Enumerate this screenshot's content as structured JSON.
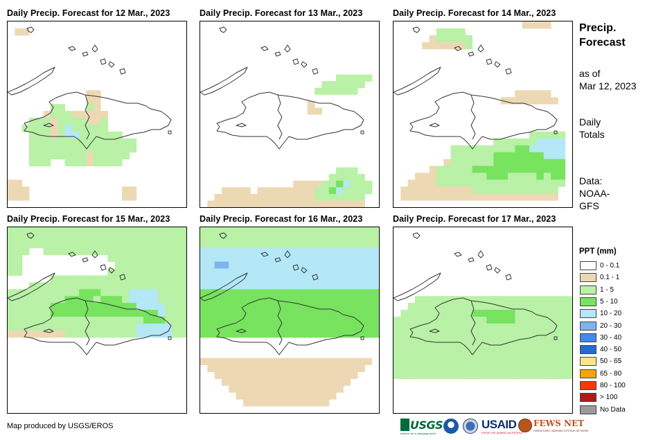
{
  "map_data": {
    "region": "Hispaniola",
    "panels": [
      {
        "title": "Daily Precip. Forecast for 12 Mar., 2023",
        "date": "12 Mar., 2023",
        "grid": [
          "0000000000000000000000000",
          "0110000000000000000000000",
          "0000000000000000000000000",
          "0000000000000000000000000",
          "0000000000000000000000000",
          "0000000000000000000000000",
          "0000000000000000000000000",
          "0000000000000000000000000",
          "0000000000000000000000000",
          "0000000000000000000000000",
          "0000000000011000000000000",
          "0000000000011000000000000",
          "0000002200021000000000000",
          "0000012221111100000000000",
          "0002221222211200000000000",
          "0022221242222200000000000",
          "0002221244222222000000000",
          "0002222222222222220000000",
          "0002222222222222220000000",
          "0002222222212222200000000",
          "0002220022212222000000000",
          "0000000000000000000000000",
          "0000000000000000000000000",
          "1100000000000000000000000",
          "1110000000000000110000000",
          "1110000000000000110000000",
          "0000000000000000000000000"
        ]
      },
      {
        "title": "Daily Precip. Forecast for 13 Mar., 2023",
        "date": "13 Mar., 2023",
        "grid": [
          "0000000000000000000000000",
          "0000000000000000000000000",
          "0000000000000000000000000",
          "0000000000000000000000000",
          "0000000000000000000000000",
          "0000000000000000000000000",
          "0000000000000000000000000",
          "0000000000000000000000000",
          "0000000000000000000222220",
          "0000000000000000022222200",
          "0000000000000000222222000",
          "0000000000000000000000000",
          "0000000000000001000000000",
          "0000000000000001100000000",
          "0000000000000000000000000",
          "0000000000000000000000000",
          "0000000000000000000000000",
          "0000000000000000000000000",
          "0000000000000000000000000",
          "0000000000000000000000000",
          "0000000000000000000000000",
          "0000000000000000000000000",
          "0000000000000000000222000",
          "0000000000000000002222200",
          "0000000000000111122342220",
          "0001111011111111223422220",
          "0011111111111111222222200",
          "0111111111111111111111100"
        ]
      },
      {
        "title": "Daily Precip. Forecast for 14 Mar., 2023",
        "date": "14 Mar., 2023",
        "grid": [
          "0000000000000000001111000",
          "0000002222000000000000000",
          "0000012222200000000000000",
          "0000111111200000000000000",
          "0000000000000000000000000",
          "0000000000000000000000000",
          "0000000000000000000000000",
          "0000000000000000000000000",
          "0000000000000000000000000",
          "0000000000000000000000000",
          "0000000000000000011111000",
          "0000000000000001111111100",
          "0000000000000000000000000",
          "0000000000000000000000000",
          "0000000000000000000000000",
          "0000000000000000000000000",
          "0000000000000000000222220",
          "0000000000000022222244440",
          "0000000022222222233444440",
          "0000000022222233333334440",
          "0000000122222233333333330",
          "0000012222233333333333330",
          "0001112222222333222232330",
          "0011112222222222222222220",
          "0111111111122222222222200",
          "0111111111111111111111100",
          "0000000000000000000000000"
        ]
      },
      {
        "title": "Daily Precip. Forecast for 15 Mar., 2023",
        "date": "15 Mar., 2023",
        "grid": [
          "2222222222222222222222222",
          "2222222222222222222222222",
          "2222222222222222222222222",
          "2220022222222222222222222",
          "2200000000000022222222222",
          "2200000000000002222222222",
          "2200000000000022222222222",
          "0000002222222222222222222",
          "0002222222222222222222222",
          "2222222222333222244442222",
          "2222222233332333244442222",
          "2222223333333333334444222",
          "2222223333333333333334222",
          "2222222222222222222333222",
          "2222222222222222224444422",
          "1111111122222222224444422",
          "0000000000000000000000000",
          "0000000000000000000000000",
          "0000000000000000000000000",
          "0000000000000000000000000",
          "0000000000000000000000000",
          "0000000000000000000000000",
          "0000000000000000000000000",
          "0000000000000000000000000",
          "0000000000000000000000000",
          "0000000000000000000000000",
          "0000000000000000000000000"
        ]
      },
      {
        "title": "Daily Precip. Forecast for 16 Mar., 2023",
        "date": "16 Mar., 2023",
        "grid": [
          "2222222222222222222222222",
          "2222222222222222222222222",
          "2222222222222222222222222",
          "4444444444444444444444444",
          "4444444444444444444444444",
          "4455444444444444444444444",
          "4444444444444444444444444",
          "4444444444444444444444444",
          "4444444444444444444444444",
          "3333333333333333333333333",
          "3333333333333333333333333",
          "3333333333333333333333333",
          "3333333333333333333333333",
          "3333333333333333333333333",
          "3333333333333333333333333",
          "3333333333333333333333333",
          "0000000000000000000000000",
          "0000000000000000000000000",
          "0000000000000000000000000",
          "1111111111111111111111110",
          "0111111111111111111111100",
          "0011111111111111111111000",
          "0001111111111111111110000",
          "0000111111111111111100000",
          "0000011111111111111000000",
          "0000001111111111110000000",
          "0000000000000000000000000"
        ]
      },
      {
        "title": "Daily Precip. Forecast for 17 Mar., 2023",
        "date": "17 Mar., 2023",
        "grid": [
          "0000000000000000000000000",
          "0000000000000000000000000",
          "0000000000000000000000000",
          "0000000000000000000000000",
          "0000000000000000000000000",
          "0000000000000000000000000",
          "0000000000000000000000000",
          "0000000000000000000000000",
          "0000000000000000000000000",
          "0000000000000000000000000",
          "0002222222222222222222222",
          "0022222222222222222222222",
          "0222222222233333322222222",
          "2222222222222333322222222",
          "2222222222222222222222222",
          "2222222222222222222222222",
          "2222222222222222222222222",
          "2222222222222222222222222",
          "2222222222222222222222222",
          "2222222222222222222222222",
          "2222222222222222222222222",
          "2222222222222222222222222",
          "0000000000000000000000000",
          "0000000000000000000000000",
          "0000000000000000000000000",
          "0000000000000000000000000",
          "0000000000000000000000000"
        ]
      }
    ]
  },
  "sidebar": {
    "title_line1": "Precip.",
    "title_line2": "Forecast",
    "asof_line1": "as of",
    "asof_line2": "Mar 12, 2023",
    "totals_line1": "Daily",
    "totals_line2": "Totals",
    "data_line1": "Data:",
    "data_line2": "NOAA-",
    "data_line3": "GFS"
  },
  "legend": {
    "title": "PPT (mm)",
    "items": [
      {
        "label": "0 - 0.1",
        "color": "#ffffff"
      },
      {
        "label": "0.1 - 1",
        "color": "#ecd9b4"
      },
      {
        "label": "1 - 5",
        "color": "#b9f1a6"
      },
      {
        "label": "5 - 10",
        "color": "#77e35f"
      },
      {
        "label": "10 - 20",
        "color": "#b4e8f7"
      },
      {
        "label": "20 - 30",
        "color": "#7db4f0"
      },
      {
        "label": "30 - 40",
        "color": "#3f89ef"
      },
      {
        "label": "40 - 50",
        "color": "#226bd8"
      },
      {
        "label": "50 - 65",
        "color": "#fde487"
      },
      {
        "label": "65 - 80",
        "color": "#f6a40a"
      },
      {
        "label": "80 - 100",
        "color": "#f63b08"
      },
      {
        "label": "> 100",
        "color": "#b01a16"
      },
      {
        "label": "No Data",
        "color": "#9a9a9a"
      }
    ]
  },
  "footer": {
    "credit": "Map produced by USGS/EROS",
    "logos": {
      "usgs": "USGS",
      "usgs_tagline": "science for a changing world",
      "usaid": "USAID",
      "usaid_tagline": "FROM THE AMERICAN PEOPLE",
      "fews": "FEWS NET",
      "fews_tagline": "FAMINE EARLY WARNING SYSTEMS NETWORK"
    }
  }
}
